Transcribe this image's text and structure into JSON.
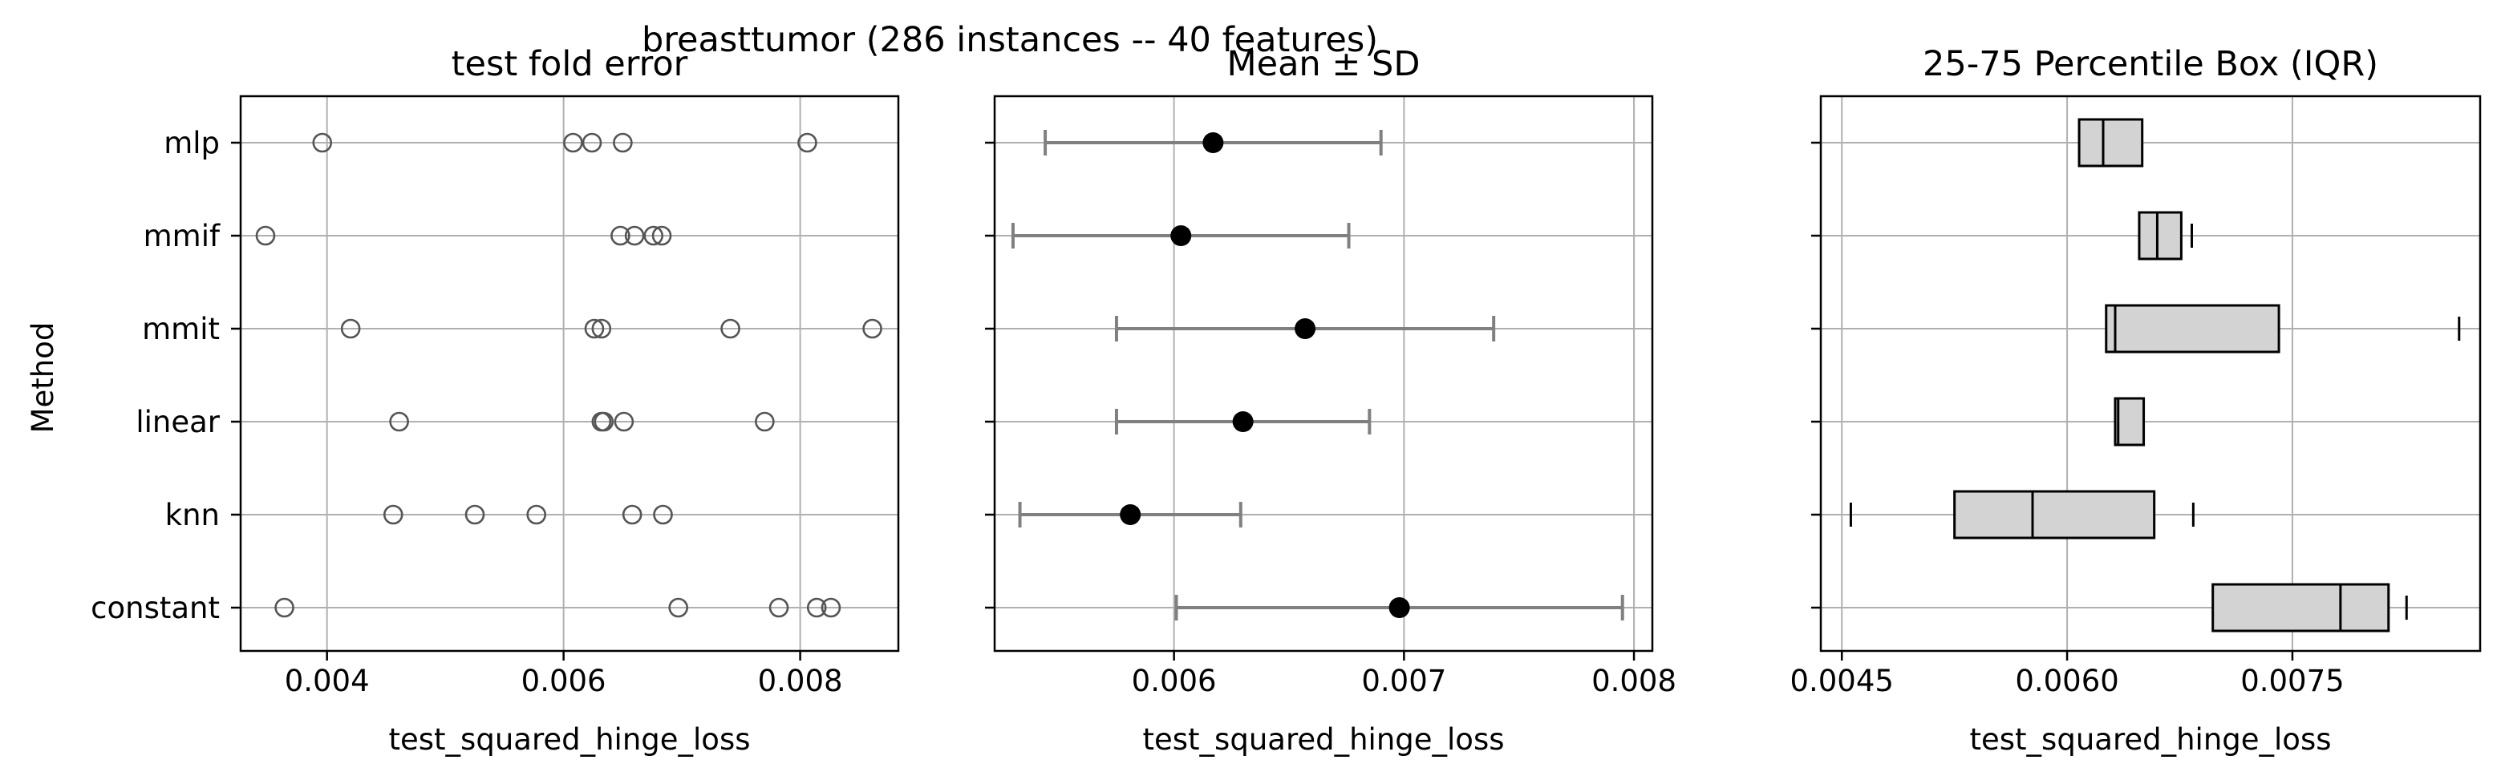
{
  "figure": {
    "suptitle": "breasttumor (286 instances -- 40 features)",
    "ylabel": "Method"
  },
  "chart_data": [
    {
      "type": "scatter",
      "title": "test fold error",
      "xlabel": "test_squared_hinge_loss",
      "ylabel": "Method",
      "categories": [
        "mlp",
        "mmif",
        "mmit",
        "linear",
        "knn",
        "constant"
      ],
      "xlim": [
        0.00327,
        0.00883
      ],
      "xticks": [
        0.004,
        0.006,
        0.008
      ],
      "xtick_labels": [
        "0.004",
        "0.006",
        "0.008"
      ],
      "grid": true,
      "points": {
        "mlp": [
          0.00396,
          0.00608,
          0.00624,
          0.0065,
          0.00806
        ],
        "mmif": [
          0.00348,
          0.00648,
          0.0066,
          0.00676,
          0.00683
        ],
        "mmit": [
          0.0042,
          0.00626,
          0.00632,
          0.00741,
          0.00861
        ],
        "linear": [
          0.00461,
          0.00632,
          0.00634,
          0.00651,
          0.0077
        ],
        "knn": [
          0.00456,
          0.00525,
          0.00577,
          0.00658,
          0.00684
        ],
        "constant": [
          0.00364,
          0.00697,
          0.00782,
          0.00814,
          0.00826
        ]
      }
    },
    {
      "type": "errorbar",
      "title": "Mean ± SD",
      "xlabel": "test_squared_hinge_loss",
      "categories": [
        "mlp",
        "mmif",
        "mmit",
        "linear",
        "knn",
        "constant"
      ],
      "xlim": [
        0.00522,
        0.00808
      ],
      "xticks": [
        0.006,
        0.007,
        0.008
      ],
      "xtick_labels": [
        "0.006",
        "0.007",
        "0.008"
      ],
      "grid": true,
      "mean": [
        0.00617,
        0.00603,
        0.00657,
        0.0063,
        0.00581,
        0.00698
      ],
      "sd": [
        0.00073,
        0.00073,
        0.00082,
        0.00055,
        0.00048,
        0.00097
      ]
    },
    {
      "type": "box",
      "title": "25-75 Percentile Box (IQR)",
      "xlabel": "test_squared_hinge_loss",
      "categories": [
        "mlp",
        "mmif",
        "mmit",
        "linear",
        "knn",
        "constant"
      ],
      "xlim": [
        0.00436,
        0.00875
      ],
      "xticks": [
        0.0045,
        0.006,
        0.0075
      ],
      "xtick_labels": [
        "0.0045",
        "0.0060",
        "0.0075"
      ],
      "grid": true,
      "boxes": [
        {
          "q1": 0.00608,
          "median": 0.00624,
          "q3": 0.0065
        },
        {
          "q1": 0.00648,
          "median": 0.0066,
          "q3": 0.00676,
          "whisker_hi": 0.00683
        },
        {
          "q1": 0.00626,
          "median": 0.00632,
          "q3": 0.00741,
          "whisker_hi": 0.00861
        },
        {
          "q1": 0.00632,
          "median": 0.00634,
          "q3": 0.00651
        },
        {
          "q1": 0.00525,
          "median": 0.00577,
          "q3": 0.00658,
          "whisker_lo": 0.00456,
          "whisker_hi": 0.00684
        },
        {
          "q1": 0.00697,
          "median": 0.00782,
          "q3": 0.00814,
          "whisker_hi": 0.00826
        }
      ]
    }
  ]
}
